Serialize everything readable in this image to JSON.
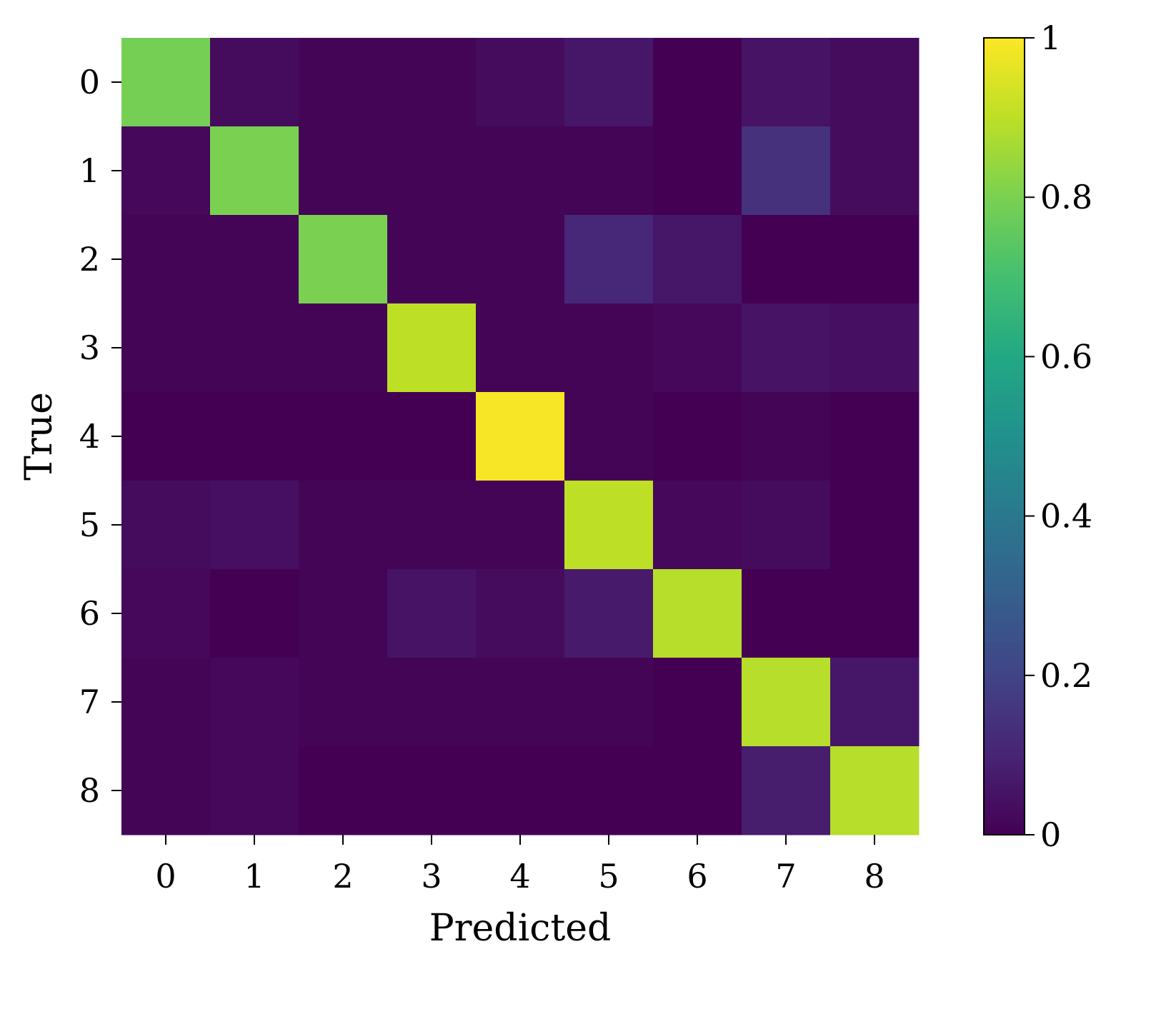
{
  "chart_data": {
    "type": "heatmap",
    "title": "",
    "xlabel": "Predicted",
    "ylabel": "True",
    "x_categories": [
      "0",
      "1",
      "2",
      "3",
      "4",
      "5",
      "6",
      "7",
      "8"
    ],
    "y_categories": [
      "0",
      "1",
      "2",
      "3",
      "4",
      "5",
      "6",
      "7",
      "8"
    ],
    "values": [
      [
        0.79,
        0.03,
        0.01,
        0.01,
        0.03,
        0.06,
        0.0,
        0.05,
        0.03
      ],
      [
        0.02,
        0.8,
        0.01,
        0.01,
        0.01,
        0.01,
        0.0,
        0.14,
        0.03
      ],
      [
        0.01,
        0.01,
        0.8,
        0.01,
        0.01,
        0.11,
        0.06,
        0.0,
        0.0
      ],
      [
        0.01,
        0.01,
        0.01,
        0.9,
        0.01,
        0.01,
        0.02,
        0.05,
        0.04
      ],
      [
        0.0,
        0.0,
        0.0,
        0.0,
        0.99,
        0.01,
        0.0,
        0.01,
        0.0
      ],
      [
        0.03,
        0.04,
        0.01,
        0.01,
        0.01,
        0.9,
        0.02,
        0.03,
        0.0
      ],
      [
        0.02,
        0.0,
        0.01,
        0.05,
        0.03,
        0.07,
        0.89,
        0.0,
        0.0
      ],
      [
        0.01,
        0.02,
        0.01,
        0.01,
        0.01,
        0.01,
        0.0,
        0.89,
        0.06
      ],
      [
        0.01,
        0.02,
        0.0,
        0.0,
        0.0,
        0.0,
        0.0,
        0.08,
        0.89
      ]
    ],
    "colorbar": {
      "colormap": "viridis",
      "range": [
        0,
        1
      ],
      "ticks": [
        0,
        0.2,
        0.4,
        0.6,
        0.8,
        1
      ],
      "tick_labels": [
        "0",
        "0.2",
        "0.4",
        "0.6",
        "0.8",
        "1"
      ]
    },
    "grid": false,
    "legend": "none"
  }
}
